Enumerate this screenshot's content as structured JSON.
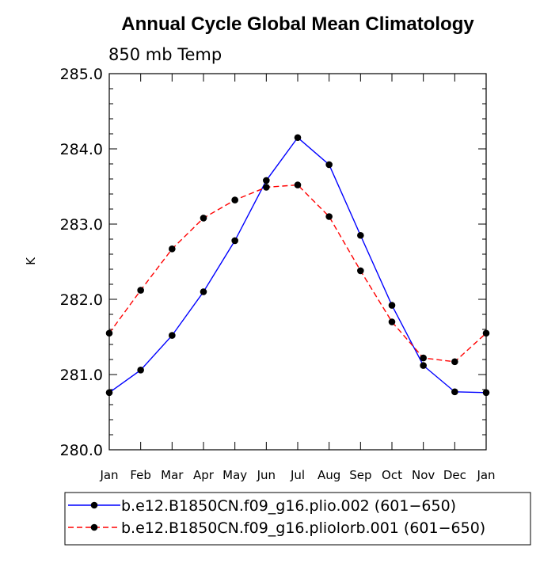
{
  "chart_data": {
    "type": "line",
    "title": "Annual Cycle Global Mean Climatology",
    "subtitle": "850 mb Temp",
    "xlabel": "",
    "ylabel": "K",
    "ylim": [
      280.0,
      285.0
    ],
    "yticks": [
      "280.0",
      "281.0",
      "282.0",
      "283.0",
      "284.0",
      "285.0"
    ],
    "categories": [
      "Jan",
      "Feb",
      "Mar",
      "Apr",
      "May",
      "Jun",
      "Jul",
      "Aug",
      "Sep",
      "Oct",
      "Nov",
      "Dec",
      "Jan"
    ],
    "grid": false,
    "legend_position": "bottom",
    "series": [
      {
        "name": "b.e12.B1850CN.f09_g16.plio.002 (601−650)",
        "color": "#0000ff",
        "dash": "solid",
        "values": [
          280.76,
          281.06,
          281.52,
          282.1,
          282.78,
          283.58,
          284.15,
          283.79,
          282.85,
          281.92,
          281.12,
          280.77,
          280.76
        ]
      },
      {
        "name": "b.e12.B1850CN.f09_g16.pliolorb.001 (601−650)",
        "color": "#ff0000",
        "dash": "dashed",
        "values": [
          281.55,
          282.12,
          282.67,
          283.08,
          283.32,
          283.49,
          283.52,
          283.1,
          282.38,
          281.7,
          281.22,
          281.17,
          281.55
        ]
      }
    ]
  }
}
